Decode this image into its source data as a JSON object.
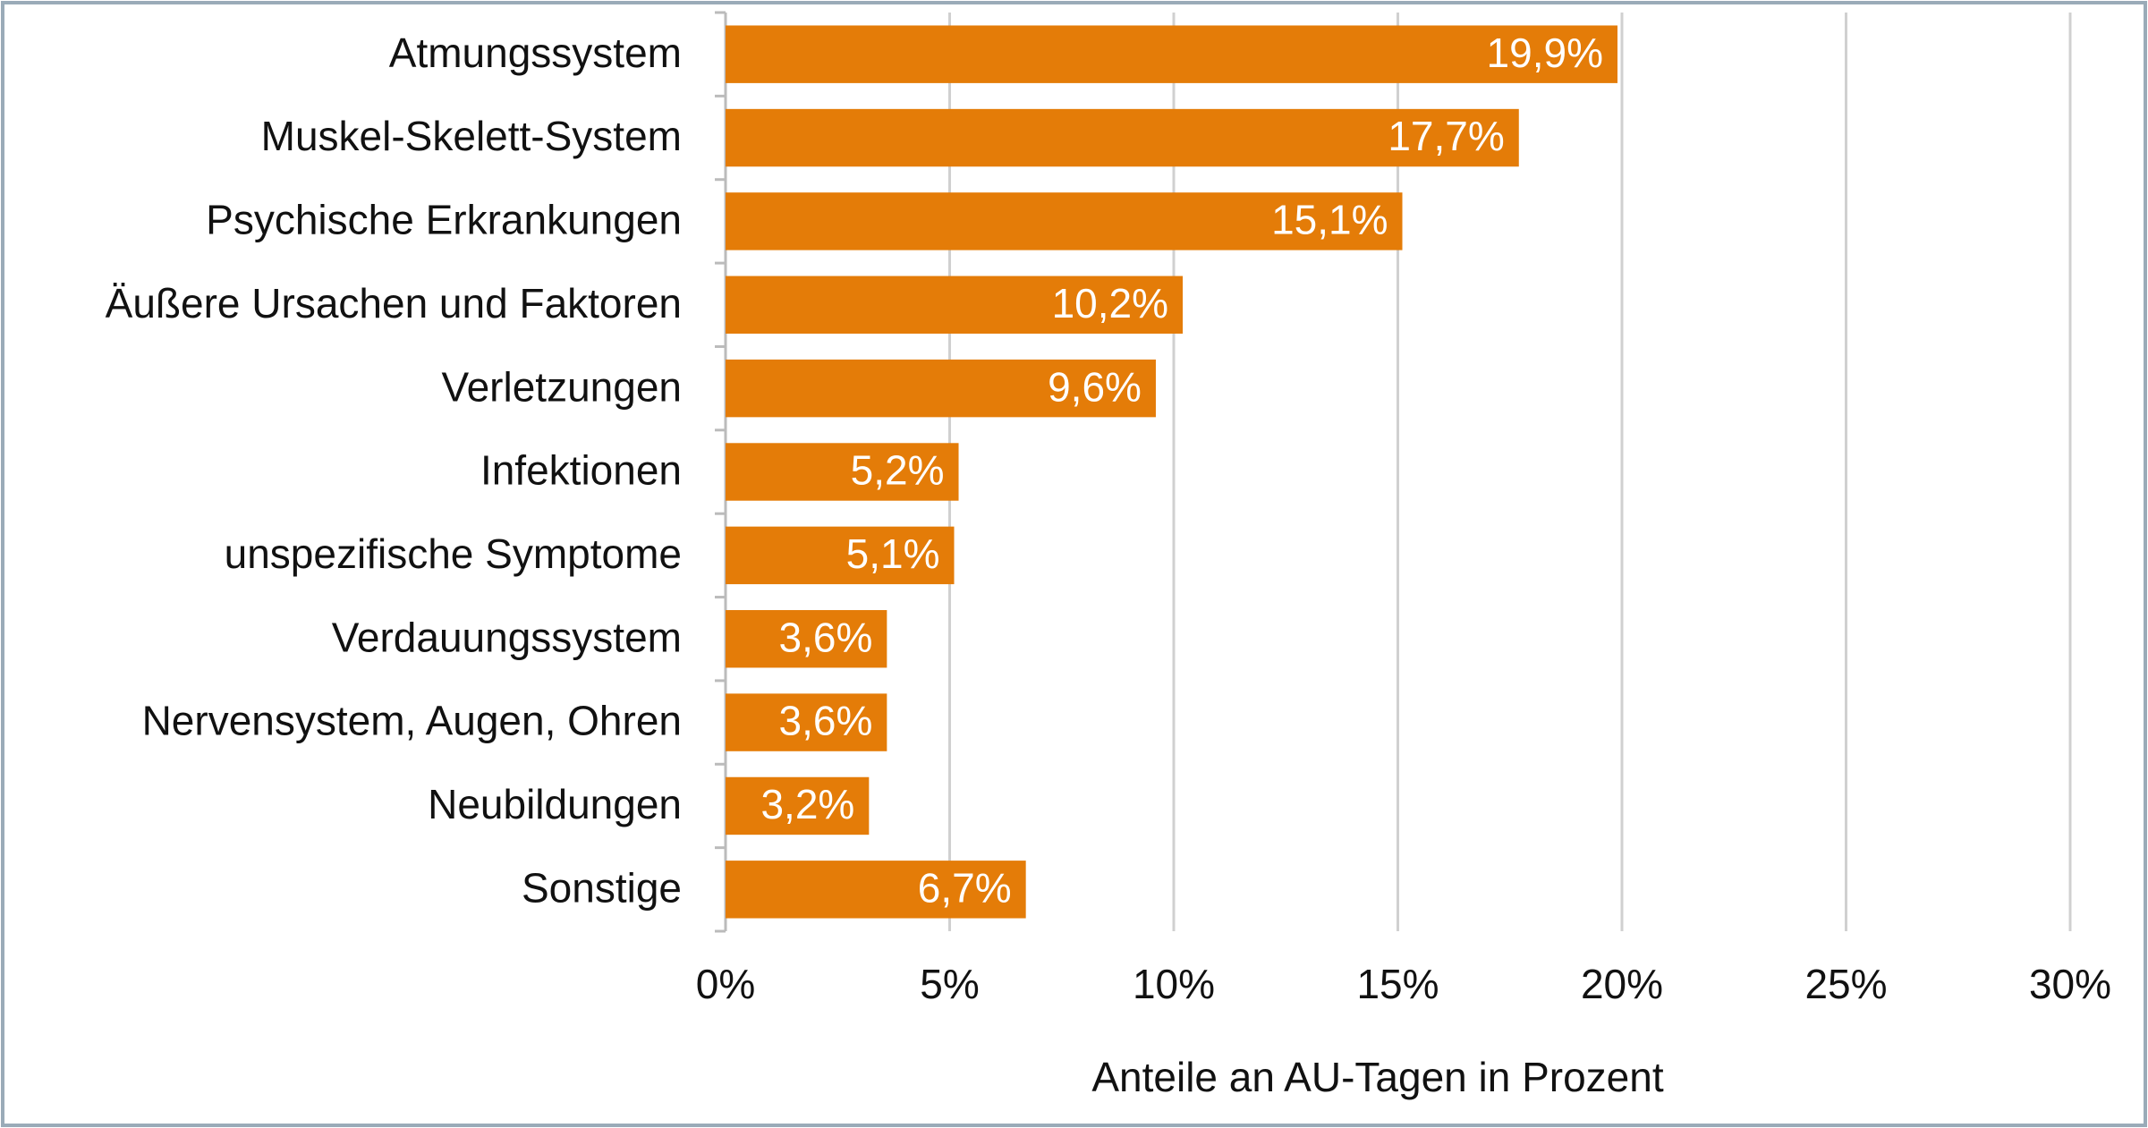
{
  "chart_data": {
    "type": "bar",
    "x_label": "Anteile an AU-Tagen in Prozent",
    "categories": [
      "Atmungssystem",
      "Muskel-Skelett-System",
      "Psychische Erkrankungen",
      "Äußere Ursachen und Faktoren",
      "Verletzungen",
      "Infektionen",
      "unspezifische Symptome",
      "Verdauungssystem",
      "Nervensystem, Augen, Ohren",
      "Neubildungen",
      "Sonstige"
    ],
    "values": [
      19.9,
      17.7,
      15.1,
      10.2,
      9.6,
      5.2,
      5.1,
      3.6,
      3.6,
      3.2,
      6.7
    ],
    "value_labels": [
      "19,9%",
      "17,7%",
      "15,1%",
      "10,2%",
      "9,6%",
      "5,2%",
      "5,1%",
      "3,6%",
      "3,6%",
      "3,2%",
      "6,7%"
    ],
    "color": "#e47c08",
    "xlim": [
      0,
      30
    ],
    "xticks": [
      {
        "value": 0,
        "label": "0%"
      },
      {
        "value": 5,
        "label": "5%"
      },
      {
        "value": 10,
        "label": "10%"
      },
      {
        "value": 15,
        "label": "15%"
      },
      {
        "value": 20,
        "label": "20%"
      },
      {
        "value": 25,
        "label": "25%"
      },
      {
        "value": 30,
        "label": "30%"
      }
    ],
    "grid": true
  }
}
